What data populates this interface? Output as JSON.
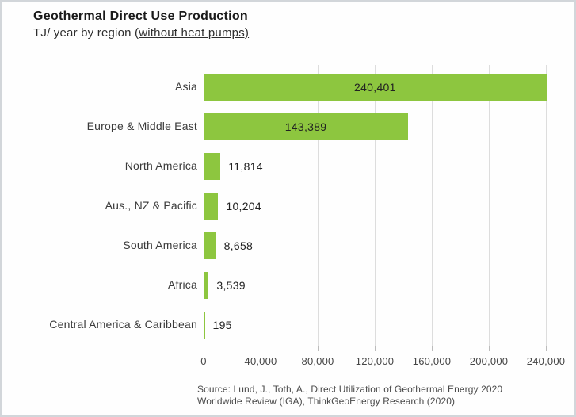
{
  "header": {
    "title": "Geothermal Direct Use Production",
    "subtitle_prefix": "TJ/ year by region ",
    "subtitle_underlined": "(without heat pumps)"
  },
  "chart_data": {
    "type": "bar",
    "orientation": "horizontal",
    "title": "Geothermal Direct Use Production",
    "subtitle": "TJ/ year by region (without heat pumps)",
    "xlabel": "",
    "ylabel": "",
    "categories": [
      "Asia",
      "Europe & Middle East",
      "North America",
      "Aus., NZ & Pacific",
      "South America",
      "Africa",
      "Central America & Caribbean"
    ],
    "values": [
      240401,
      143389,
      11814,
      10204,
      8658,
      3539,
      195
    ],
    "value_labels": [
      "240,401",
      "143,389",
      "11,814",
      "10,204",
      "8,658",
      "3,539",
      "195"
    ],
    "xlim": [
      0,
      240000
    ],
    "x_ticks": [
      0,
      40000,
      80000,
      120000,
      160000,
      200000,
      240000
    ],
    "x_tick_labels": [
      "0",
      "40,000",
      "80,000",
      "120,000",
      "160,000",
      "200,000",
      "240,000"
    ],
    "grid": "vertical-only",
    "legend": "none",
    "bar_color": "#8dc63f",
    "gridline_color": "#dddddd"
  },
  "source": {
    "line1": "Source: Lund, J., Toth, A., Direct Utilization of Geothermal Energy 2020",
    "line2": "Worldwide Review (IGA), ThinkGeoEnergy Research (2020)"
  }
}
